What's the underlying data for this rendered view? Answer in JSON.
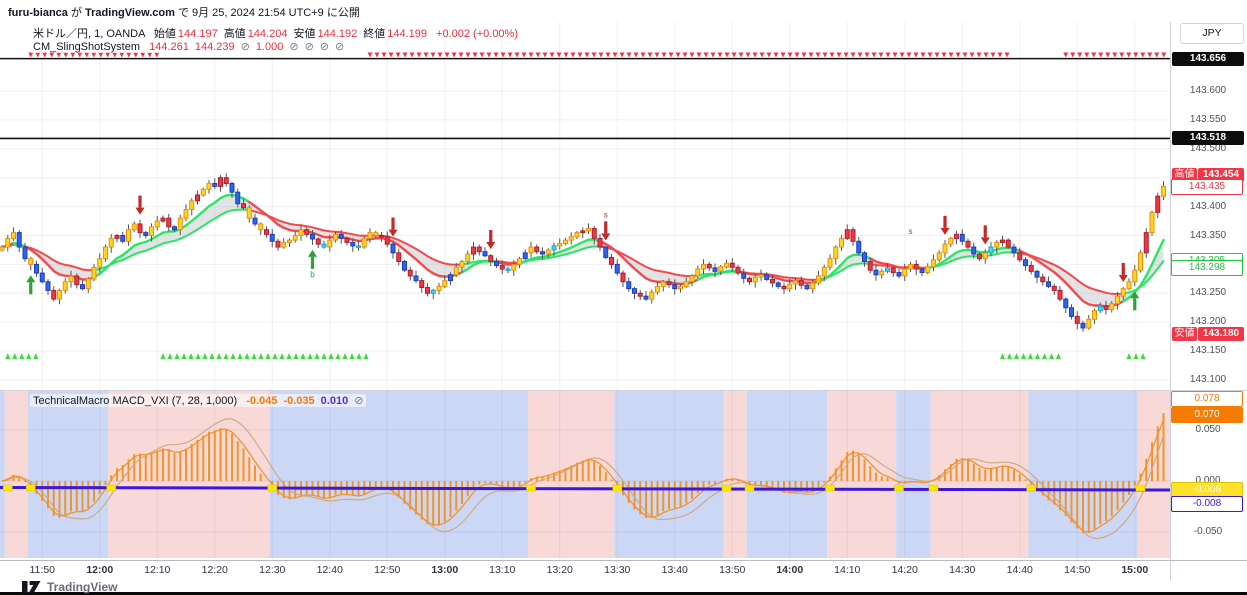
{
  "header": {
    "user": "furu-bianca",
    "mid1": " が ",
    "site": "TradingView.com",
    "rest": " で 9月 25, 2024 21:54 UTC+9 に公開"
  },
  "symbol_legend": {
    "title": "米ドル／円, 1, OANDA",
    "fields": [
      {
        "label": "始値",
        "value": "144.197"
      },
      {
        "label": "高値",
        "value": "144.204"
      },
      {
        "label": "安値",
        "value": "144.192"
      },
      {
        "label": "終値",
        "value": "144.199"
      }
    ],
    "change": "+0.002 (+0.00%)"
  },
  "indicator_legend": {
    "name": "CM_SlingShotSystem",
    "values": [
      {
        "text": "144.261",
        "kind": "value"
      },
      {
        "text": "144.239",
        "kind": "value"
      },
      {
        "text": "⊘",
        "kind": "icon"
      },
      {
        "text": "1.000",
        "kind": "value"
      },
      {
        "text": "⊘",
        "kind": "icon"
      },
      {
        "text": "⊘",
        "kind": "icon"
      },
      {
        "text": "⊘",
        "kind": "icon"
      },
      {
        "text": "⊘",
        "kind": "icon"
      }
    ]
  },
  "macd_legend": {
    "name": "TechnicalMacro MACD_VXI (7, 28, 1,000)",
    "values": [
      {
        "text": "-0.045",
        "color": "#f57c00"
      },
      {
        "text": "-0.035",
        "color": "#f57c00"
      },
      {
        "text": "0.010",
        "color": "#5b2bd9"
      },
      {
        "text": "⊘",
        "color": "#787b86"
      }
    ]
  },
  "price_axis": {
    "currency": "JPY",
    "ticks": [
      "143.600",
      "143.550",
      "143.500",
      "143.400",
      "143.350",
      "143.250",
      "143.200",
      "143.150",
      "143.100"
    ],
    "special": [
      {
        "text": "143.656",
        "style": "black",
        "price": 143.656
      },
      {
        "text": "143.518",
        "style": "black",
        "price": 143.518
      },
      {
        "text": "143.454",
        "style": "red-tag",
        "tag": "高値",
        "price": 143.454
      },
      {
        "text": "143.435",
        "style": "red-outline",
        "price": 143.435
      },
      {
        "text": "143.305",
        "style": "green-outline",
        "price": 143.307
      },
      {
        "text": "143.298",
        "style": "green-outline",
        "price": 143.296
      },
      {
        "text": "143.180",
        "style": "red-tag",
        "tag": "安値",
        "price": 143.18
      }
    ]
  },
  "macd_axis": {
    "ticks": [
      {
        "text": "0.050",
        "v": 0.05
      },
      {
        "text": "0.000",
        "v": 0.0
      },
      {
        "text": "-0.050",
        "v": -0.05
      }
    ],
    "special": [
      {
        "text": "0.078",
        "style": "orange-outline",
        "v": 0.081
      },
      {
        "text": "0.070",
        "style": "orange-fill",
        "v": 0.066
      },
      {
        "text": "-0.008",
        "style": "yellow-fill",
        "v": -0.008
      },
      {
        "text": "-0.008",
        "style": "blue-outline",
        "v": -0.022
      }
    ]
  },
  "time_axis": {
    "labels": [
      "11:50",
      "12:00",
      "12:10",
      "12:20",
      "12:30",
      "12:40",
      "12:50",
      "13:00",
      "13:10",
      "13:20",
      "13:30",
      "13:40",
      "13:50",
      "14:00",
      "14:10",
      "14:20",
      "14:30",
      "14:40",
      "14:50",
      "15:00"
    ],
    "bold": [
      1,
      7,
      13,
      19
    ]
  },
  "footer": {
    "brand": "TradingView"
  },
  "colors": {
    "candle_yellow": "#ffd61e",
    "candle_yellow_border": "#e88f12",
    "candle_blue": "#2e62f5",
    "candle_blue_border": "#1c3fb8",
    "candle_red": "#f23645",
    "candle_red_border": "#a91f2d",
    "candle_cyan": "#45d8f2",
    "candle_cyan_border": "#0fa8c7",
    "trend_up": "#2be665",
    "trend_down": "#f5484d",
    "trend_fill": "rgba(150,153,163,0.28)",
    "macd_bar": "#f59120",
    "macd_line": "#f59120",
    "macd_signal": "#cdab85",
    "macd_baseline": "#3c18d9",
    "flip_marker": "#ffe600",
    "band_positive": "#f8d9d8",
    "band_negative": "#ccd7f6",
    "marker_sell": "#c62828",
    "marker_buy": "#2e9e3e",
    "triangle_red": "#f23645",
    "triangle_green": "#3bdc3b",
    "grid": "rgba(67,70,81,0.08)",
    "level_line": "#111111",
    "wick": "#555555"
  },
  "chart_data": {
    "type": "candlestick_with_macd_panel",
    "symbol": "米ドル／円",
    "interval": "1",
    "exchange": "OANDA",
    "time_start": "11:43",
    "time_end": "15:05",
    "price_axis_range": [
      143.08,
      143.68
    ],
    "macd_axis_range": [
      -0.075,
      0.09
    ],
    "levels": {
      "upper_black_line": 143.656,
      "lower_black_line": 143.518
    },
    "session": {
      "high": 143.454,
      "low": 143.18,
      "last": 143.435
    },
    "slingshot_values": {
      "fast": 143.305,
      "slow": 143.298
    },
    "closes": [
      143.33,
      143.345,
      143.355,
      143.33,
      143.31,
      143.3,
      143.285,
      143.27,
      143.255,
      143.24,
      143.255,
      143.27,
      143.28,
      143.265,
      143.258,
      143.275,
      143.295,
      143.31,
      143.33,
      143.345,
      143.35,
      143.34,
      143.36,
      143.37,
      143.355,
      143.35,
      143.365,
      143.375,
      143.38,
      143.365,
      143.36,
      143.38,
      143.395,
      143.41,
      143.42,
      143.43,
      143.44,
      143.435,
      143.45,
      143.44,
      143.425,
      143.405,
      143.398,
      143.38,
      143.37,
      143.36,
      143.352,
      143.34,
      143.33,
      143.338,
      143.342,
      143.35,
      143.36,
      143.352,
      143.344,
      143.335,
      143.33,
      143.342,
      143.352,
      143.345,
      143.338,
      143.332,
      143.33,
      143.345,
      143.355,
      143.35,
      143.348,
      143.335,
      143.32,
      143.305,
      143.29,
      143.28,
      143.272,
      143.26,
      143.25,
      143.255,
      143.262,
      143.272,
      143.282,
      143.295,
      143.305,
      143.318,
      143.33,
      143.322,
      143.315,
      143.305,
      143.298,
      143.292,
      143.29,
      143.3,
      143.31,
      143.32,
      143.33,
      143.322,
      143.318,
      143.325,
      143.332,
      143.336,
      143.342,
      143.348,
      143.355,
      143.358,
      143.362,
      143.345,
      143.33,
      143.312,
      143.3,
      143.285,
      143.27,
      143.258,
      143.25,
      143.245,
      143.24,
      143.252,
      143.262,
      143.27,
      143.265,
      143.258,
      143.262,
      143.27,
      143.28,
      143.292,
      143.3,
      143.294,
      143.288,
      143.296,
      143.302,
      143.295,
      143.285,
      143.276,
      143.27,
      143.278,
      143.282,
      143.274,
      143.268,
      143.262,
      143.258,
      143.266,
      143.272,
      143.264,
      143.258,
      143.268,
      143.28,
      143.295,
      143.31,
      143.33,
      143.345,
      143.36,
      143.34,
      143.32,
      143.305,
      143.29,
      143.282,
      143.288,
      143.294,
      143.286,
      143.28,
      143.292,
      143.3,
      143.292,
      143.286,
      143.296,
      143.308,
      143.32,
      143.335,
      143.345,
      143.352,
      143.34,
      143.33,
      143.318,
      143.31,
      143.32,
      143.33,
      143.338,
      143.342,
      143.33,
      143.32,
      143.308,
      143.298,
      143.288,
      143.278,
      143.27,
      143.262,
      143.255,
      143.24,
      143.225,
      143.21,
      143.198,
      143.19,
      143.205,
      143.22,
      143.228,
      143.222,
      143.232,
      143.245,
      143.258,
      143.27,
      143.29,
      143.32,
      143.355,
      143.39,
      143.418,
      143.435
    ],
    "candle_color_segments": [
      "YYYBBYBBBR",
      "YYYRBYYY",
      "YYRBYY",
      "RBYYR",
      "RBYYY",
      "RYYBR",
      "RBBRYB",
      "YRBR",
      "YYYYRBRC",
      "YYBRBCYY",
      "YRRBR",
      "BRBRRC",
      "YYBYYYR",
      "RBRBRC",
      "YYBYRB",
      "YCYYYYRY",
      "RRBRBR",
      "BBRBY",
      "YYRBYY",
      "YYYRBYYR",
      "RBRYYBRBR",
      "YYRBYY",
      "YYYYR",
      "RBBRB",
      "YCRBYY",
      "RBYYY",
      "YYRBR",
      "BRYCYR",
      "RBRBR",
      "BRBR",
      "RBBRB",
      "YYCRY",
      "YYYY",
      "YRYRY"
    ],
    "signals": {
      "sell_arrows": [
        {
          "index": 24,
          "time": "12:07"
        },
        {
          "index": 68,
          "time": "12:51"
        },
        {
          "index": 85,
          "time": "13:08"
        },
        {
          "index": 105,
          "time": "13:28"
        },
        {
          "index": 164,
          "time": "14:27"
        },
        {
          "index": 171,
          "time": "14:34"
        },
        {
          "index": 195,
          "time": "14:58"
        }
      ],
      "buy_arrows": [
        {
          "index": 5,
          "time": "11:48"
        },
        {
          "index": 54,
          "time": "12:37"
        },
        {
          "index": 197,
          "time": "15:00"
        }
      ],
      "letters": [
        {
          "index": 105,
          "char": "s",
          "pos": "above"
        },
        {
          "index": 158,
          "char": "s",
          "pos": "above"
        },
        {
          "index": 54,
          "char": "b",
          "pos": "below"
        }
      ]
    },
    "trend_ribbons": {
      "sell_top_index_ranges": [
        [
          5,
          28
        ],
        [
          64,
          175
        ],
        [
          185,
          203
        ]
      ],
      "buy_bottom_index_ranges": [
        [
          1,
          6
        ],
        [
          28,
          64
        ],
        [
          174,
          184
        ],
        [
          196,
          199
        ]
      ]
    },
    "macd": {
      "fast_period": 7,
      "slow_period": 28,
      "extra_param": "1,000",
      "baseline_value": -0.008,
      "last_histogram": 0.07,
      "last_peak": 0.078
    }
  }
}
